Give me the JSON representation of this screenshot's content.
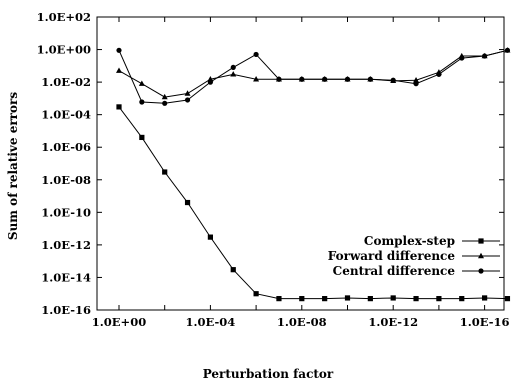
{
  "chart_data": {
    "type": "line",
    "xlabel": "Perturbation factor",
    "ylabel": "Sum of relative errors",
    "x_scale": "log",
    "x_direction": "decreasing",
    "y_scale": "log",
    "xlim": [
      1,
      1e-18
    ],
    "ylim": [
      1e-16,
      100
    ],
    "x_tick_labels": [
      "1.0E+00",
      "1.0E-04",
      "1.0E-08",
      "1.0E-12",
      "1.0E-16"
    ],
    "x_tick_values": [
      1,
      0.0001,
      1e-08,
      1e-12,
      1e-16
    ],
    "y_tick_labels": [
      "1.0E+02",
      "1.0E+00",
      "1.0E-02",
      "1.0E-04",
      "1.0E-06",
      "1.0E-08",
      "1.0E-10",
      "1.0E-12",
      "1.0E-14",
      "1.0E-16"
    ],
    "y_tick_values": [
      100,
      1,
      0.01,
      0.0001,
      1e-06,
      1e-08,
      1e-10,
      1e-12,
      1e-14,
      1e-16
    ],
    "grid": false,
    "legend_position": "right",
    "x": [
      1,
      0.1,
      0.01,
      0.001,
      0.0001,
      1e-05,
      1e-06,
      1e-07,
      1e-08,
      1e-09,
      1e-10,
      1e-11,
      1e-12,
      1e-13,
      1e-14,
      1e-15,
      1e-16,
      1e-17
    ],
    "series": [
      {
        "name": "Complex-step",
        "marker": "square",
        "values": [
          0.0003,
          4e-06,
          3e-08,
          4e-10,
          3e-12,
          3e-14,
          1e-15,
          5e-16,
          5e-16,
          5e-16,
          5.5e-16,
          5e-16,
          5.5e-16,
          5e-16,
          5e-16,
          5e-16,
          5.5e-16,
          5e-16
        ]
      },
      {
        "name": "Forward difference",
        "marker": "triangle",
        "values": [
          0.05,
          0.008,
          0.0012,
          0.002,
          0.015,
          0.03,
          0.015,
          0.015,
          0.015,
          0.015,
          0.015,
          0.015,
          0.012,
          0.013,
          0.04,
          0.4,
          0.4,
          0.9
        ]
      },
      {
        "name": "Central difference",
        "marker": "circle",
        "values": [
          0.9,
          0.0006,
          0.0005,
          0.0008,
          0.01,
          0.08,
          0.5,
          0.015,
          0.015,
          0.015,
          0.015,
          0.015,
          0.013,
          0.008,
          0.03,
          0.3,
          0.4,
          0.9
        ]
      }
    ]
  }
}
